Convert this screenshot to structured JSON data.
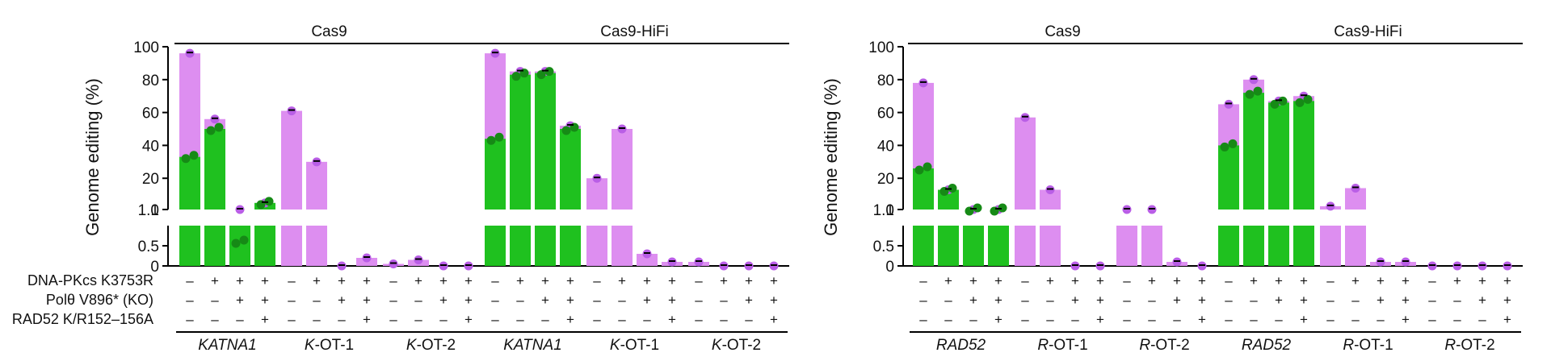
{
  "colors": {
    "total": "#dd8ef0",
    "component": "#1fc11f",
    "dot_total": "#b95ee6",
    "dot_component": "#168a16",
    "axis": "#000000"
  },
  "condition_labels": [
    "DNA-PKcs K3753R",
    "Polθ V896* (KO)",
    "RAD52 K/R152–156A"
  ],
  "condition_signs": [
    [
      "–",
      "+",
      "+",
      "+"
    ],
    [
      "–",
      "–",
      "+",
      "+"
    ],
    [
      "–",
      "–",
      "–",
      "+"
    ]
  ],
  "chart_data": [
    {
      "type": "bar",
      "ylabel": "Genome editing (%)",
      "yticks_upper": [
        "100",
        "80",
        "60",
        "40",
        "20",
        "1"
      ],
      "yticks_lower": [
        "1.0",
        "0.5",
        "0"
      ],
      "groups": [
        "Cas9",
        "Cas9-HiFi"
      ],
      "loci": [
        {
          "name": "KATNA1",
          "prefix": "",
          "suffix": "KATNA1",
          "italic_all": true,
          "group": "Cas9",
          "total": [
            96,
            56,
            1.0,
            5
          ],
          "component": [
            33,
            50,
            0.6,
            5
          ]
        },
        {
          "name": "K-OT-1",
          "prefix": "K",
          "suffix": "-OT-1",
          "italic_all": false,
          "group": "Cas9",
          "total": [
            61,
            30,
            0.0,
            0.2
          ],
          "component": [
            0,
            0,
            0,
            0
          ]
        },
        {
          "name": "K-OT-2",
          "prefix": "K",
          "suffix": "-OT-2",
          "italic_all": false,
          "group": "Cas9",
          "total": [
            0.05,
            0.15,
            0.0,
            0.0
          ],
          "component": [
            0,
            0,
            0,
            0
          ]
        },
        {
          "name": "KATNA1",
          "prefix": "",
          "suffix": "KATNA1",
          "italic_all": true,
          "group": "Cas9-HiFi",
          "total": [
            96,
            85,
            85,
            52
          ],
          "component": [
            44,
            83,
            84,
            50
          ]
        },
        {
          "name": "K-OT-1",
          "prefix": "K",
          "suffix": "-OT-1",
          "italic_all": false,
          "group": "Cas9-HiFi",
          "total": [
            20,
            50,
            0.3,
            0.1
          ],
          "component": [
            0,
            0,
            0,
            0
          ]
        },
        {
          "name": "K-OT-2",
          "prefix": "K",
          "suffix": "-OT-2",
          "italic_all": false,
          "group": "Cas9-HiFi",
          "total": [
            0.1,
            0.0,
            0.0,
            0.0
          ],
          "component": [
            0,
            0,
            0,
            0
          ]
        }
      ]
    },
    {
      "type": "bar",
      "ylabel": "Genome editing (%)",
      "yticks_upper": [
        "100",
        "80",
        "60",
        "40",
        "20",
        "1"
      ],
      "yticks_lower": [
        "1.0",
        "0.5",
        "0"
      ],
      "groups": [
        "Cas9",
        "Cas9-HiFi"
      ],
      "loci": [
        {
          "name": "RAD52",
          "prefix": "",
          "suffix": "RAD52",
          "italic_all": true,
          "group": "Cas9",
          "total": [
            78,
            13,
            1.0,
            1.0
          ],
          "component": [
            26,
            13,
            1.0,
            1.0
          ]
        },
        {
          "name": "R-OT-1",
          "prefix": "R",
          "suffix": "-OT-1",
          "italic_all": false,
          "group": "Cas9",
          "total": [
            57,
            13,
            0.0,
            0.0
          ],
          "component": [
            0,
            0,
            0,
            0
          ]
        },
        {
          "name": "R-OT-2",
          "prefix": "R",
          "suffix": "-OT-2",
          "italic_all": false,
          "group": "Cas9",
          "total": [
            1.0,
            1.0,
            0.1,
            0.0
          ],
          "component": [
            0,
            0,
            0,
            0
          ]
        },
        {
          "name": "RAD52",
          "prefix": "",
          "suffix": "RAD52",
          "italic_all": true,
          "group": "Cas9-HiFi",
          "total": [
            65,
            80,
            67,
            70
          ],
          "component": [
            40,
            72,
            66,
            67
          ]
        },
        {
          "name": "R-OT-1",
          "prefix": "R",
          "suffix": "-OT-1",
          "italic_all": false,
          "group": "Cas9-HiFi",
          "total": [
            3,
            14,
            0.1,
            0.1
          ],
          "component": [
            0,
            0,
            0,
            0
          ]
        },
        {
          "name": "R-OT-2",
          "prefix": "R",
          "suffix": "-OT-2",
          "italic_all": false,
          "group": "Cas9-HiFi",
          "total": [
            0.0,
            0.0,
            0.0,
            0.0
          ],
          "component": [
            0,
            0,
            0,
            0
          ]
        }
      ]
    }
  ]
}
